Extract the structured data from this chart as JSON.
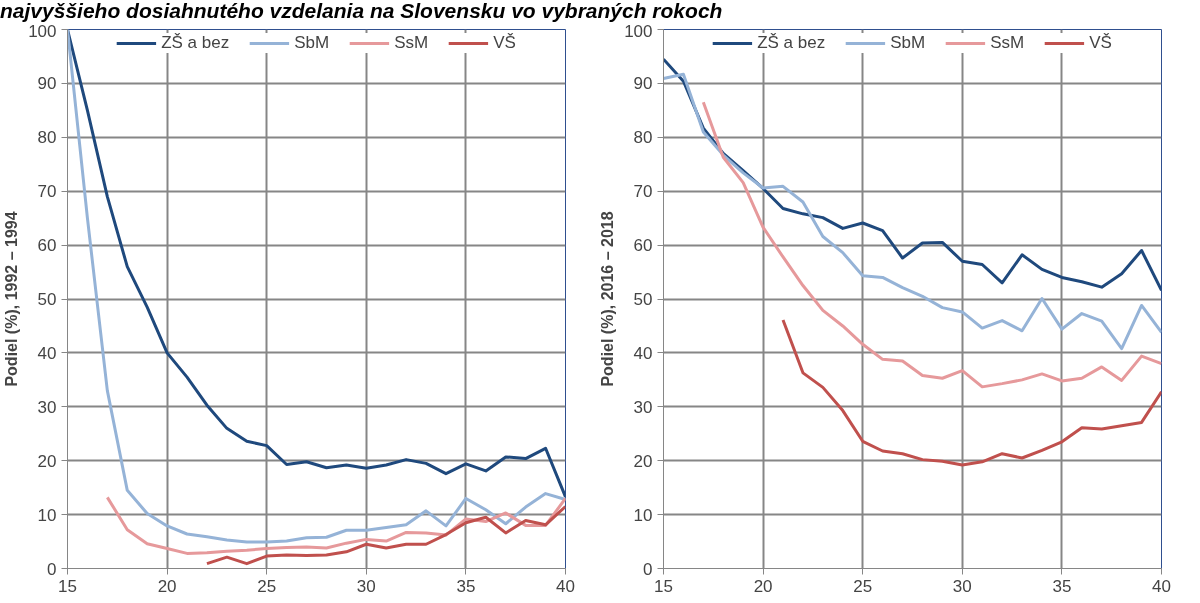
{
  "chart_data": [
    {
      "type": "line",
      "title": "najvyššieho dosiahnutého vzdelania na Slovensku vo vybraných rokoch",
      "ylabel": "Podiel (%), 1992 – 1994",
      "x": [
        15,
        16,
        17,
        18,
        19,
        20,
        21,
        22,
        23,
        24,
        25,
        26,
        27,
        28,
        29,
        30,
        31,
        32,
        33,
        34,
        35,
        36,
        37,
        38,
        39,
        40
      ],
      "xlim": [
        15,
        40
      ],
      "xticks": [
        15,
        20,
        25,
        30,
        35,
        40
      ],
      "ylim": [
        0,
        100
      ],
      "yticks": [
        0,
        10,
        20,
        30,
        40,
        50,
        60,
        70,
        80,
        90,
        100
      ],
      "grid": true,
      "legend": "top",
      "marker": "none",
      "line_style": "solid",
      "series": [
        {
          "name": "ZŠ a bez",
          "color": "#1f497d",
          "values": [
            100,
            85,
            69,
            56,
            48.5,
            40,
            35.5,
            30.3,
            26,
            23.6,
            22.8,
            19.3,
            19.8,
            18.7,
            19.2,
            18.6,
            19.2,
            20.2,
            19.5,
            17.6,
            19.4,
            18.1,
            20.7,
            20.4,
            22.3,
            13.3
          ]
        },
        {
          "name": "SbM",
          "color": "#95b3d7",
          "values": [
            100,
            65,
            33,
            14.5,
            10.2,
            7.9,
            6.4,
            5.9,
            5.3,
            4.9,
            4.9,
            5.1,
            5.7,
            5.8,
            7.1,
            7.1,
            7.6,
            8.1,
            10.7,
            7.9,
            13,
            10.9,
            8.3,
            11.4,
            13.9,
            12.8
          ]
        },
        {
          "name": "SsM",
          "color": "#e6999b",
          "values": [
            null,
            null,
            13.2,
            7.2,
            4.6,
            3.7,
            2.8,
            2.9,
            3.2,
            3.4,
            3.7,
            3.9,
            4.0,
            3.8,
            4.7,
            5.4,
            5.1,
            6.7,
            6.6,
            6.2,
            9.2,
            8.7,
            10.3,
            8.0,
            8.0,
            13.0
          ]
        },
        {
          "name": "VŠ",
          "color": "#c0504d",
          "values": [
            null,
            null,
            null,
            null,
            null,
            null,
            null,
            0.9,
            2.1,
            0.9,
            2.3,
            2.5,
            2.4,
            2.5,
            3.1,
            4.5,
            3.8,
            4.5,
            4.5,
            6.3,
            8.5,
            9.5,
            6.6,
            8.9,
            8.1,
            11.5
          ]
        }
      ]
    },
    {
      "type": "line",
      "ylabel": "Podiel (%), 2016 – 2018",
      "x": [
        15,
        16,
        17,
        18,
        19,
        20,
        21,
        22,
        23,
        24,
        25,
        26,
        27,
        28,
        29,
        30,
        31,
        32,
        33,
        34,
        35,
        36,
        37,
        38,
        39,
        40
      ],
      "xlim": [
        15,
        40
      ],
      "xticks": [
        15,
        20,
        25,
        30,
        35,
        40
      ],
      "ylim": [
        0,
        100
      ],
      "yticks": [
        0,
        10,
        20,
        30,
        40,
        50,
        60,
        70,
        80,
        90,
        100
      ],
      "grid": true,
      "legend": "top",
      "marker": "none",
      "line_style": "solid",
      "series": [
        {
          "name": "ZŠ a bez",
          "color": "#1f497d",
          "values": [
            94.5,
            90.4,
            81.7,
            77.0,
            73.8,
            70.5,
            66.8,
            65.8,
            65.1,
            63.1,
            64.1,
            62.7,
            57.6,
            60.4,
            60.5,
            57.0,
            56.4,
            53.0,
            58.2,
            55.5,
            54.0,
            53.2,
            52.2,
            54.7,
            59.0,
            51.6
          ]
        },
        {
          "name": "SbM",
          "color": "#95b3d7",
          "values": [
            90.9,
            91.7,
            81.0,
            76.7,
            73.4,
            70.6,
            70.9,
            68.0,
            61.6,
            58.6,
            54.3,
            54.0,
            52.1,
            50.5,
            48.4,
            47.6,
            44.6,
            46.0,
            44.1,
            50.1,
            44.4,
            47.3,
            45.9,
            40.8,
            48.8,
            43.8
          ]
        },
        {
          "name": "SsM",
          "color": "#e6999b",
          "values": [
            null,
            null,
            86.5,
            76.3,
            71.6,
            63.3,
            57.8,
            52.5,
            47.9,
            45.0,
            41.6,
            38.8,
            38.5,
            35.8,
            35.3,
            36.7,
            33.7,
            34.3,
            35.0,
            36.1,
            34.8,
            35.3,
            37.4,
            34.9,
            39.4,
            38.0
          ]
        },
        {
          "name": "VŠ",
          "color": "#c0504d",
          "values": [
            null,
            null,
            null,
            null,
            null,
            null,
            46.1,
            36.3,
            33.6,
            29.3,
            23.6,
            21.8,
            21.3,
            20.2,
            19.9,
            19.2,
            19.8,
            21.3,
            20.5,
            21.9,
            23.5,
            26.1,
            25.9,
            26.5,
            27.1,
            32.8
          ]
        }
      ]
    }
  ]
}
